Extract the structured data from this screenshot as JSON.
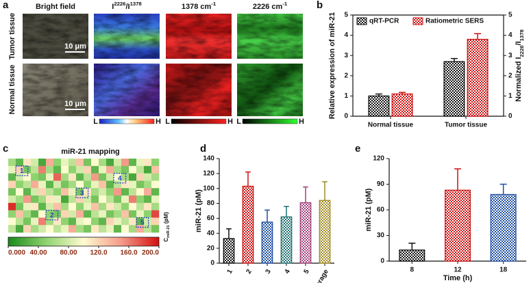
{
  "panel_labels": [
    "a",
    "b",
    "c",
    "d",
    "e"
  ],
  "panel_a": {
    "columns": [
      "Bright field",
      [
        "I",
        "2226",
        "/I",
        "1378"
      ],
      [
        "1378 cm",
        "-1"
      ],
      [
        "2226 cm",
        "-1"
      ]
    ],
    "rows": [
      "Tumor tissue",
      "Normal tissue"
    ],
    "scale_bar": "10 μm",
    "colorbar_low": "L",
    "colorbar_high": "H"
  },
  "chart_data": [
    {
      "type": "bar",
      "categories": [
        "Normal tissue",
        "Tumor tissue"
      ],
      "series": [
        {
          "name": "qRT-PCR",
          "color": "#111111",
          "values": [
            1.0,
            2.7
          ],
          "errors": [
            0.1,
            0.15
          ]
        },
        {
          "name": "Ratiometric SERS",
          "color": "#cc1111",
          "values": [
            1.1,
            3.8
          ],
          "errors": [
            0.08,
            0.28
          ],
          "axis": "y2"
        }
      ],
      "ylabel": "Relative expression of miR-21",
      "y2label": [
        "Normalized I",
        "2226",
        "/I",
        "1378"
      ],
      "ylim": [
        0,
        5
      ],
      "yticks": [
        0,
        1,
        2,
        3,
        4,
        5
      ],
      "y2lim": [
        0,
        5
      ],
      "y2ticks": [
        0,
        1,
        2,
        3,
        4,
        5
      ],
      "legend": "upper left"
    },
    {
      "type": "heatmap",
      "title": "miR-21 mapping",
      "values": [
        [
          60,
          30,
          110,
          80,
          20,
          140,
          50,
          90,
          70,
          130,
          40,
          100,
          60,
          20,
          80,
          150,
          30,
          90,
          110,
          50
        ],
        [
          90,
          120,
          40,
          70,
          160,
          60,
          30,
          100,
          50,
          80,
          120,
          30,
          90,
          140,
          60,
          40,
          100,
          70,
          20,
          130
        ],
        [
          30,
          80,
          100,
          50,
          40,
          90,
          170,
          60,
          110,
          30,
          70,
          150,
          40,
          80,
          100,
          60,
          20,
          120,
          80,
          60
        ],
        [
          120,
          50,
          70,
          140,
          90,
          30,
          80,
          40,
          60,
          100,
          50,
          90,
          130,
          30,
          70,
          110,
          90,
          40,
          60,
          100
        ],
        [
          40,
          100,
          30,
          80,
          120,
          70,
          50,
          130,
          90,
          40,
          110,
          60,
          80,
          50,
          150,
          30,
          70,
          100,
          140,
          30
        ],
        [
          80,
          60,
          150,
          40,
          60,
          110,
          90,
          20,
          70,
          120,
          80,
          40,
          100,
          70,
          40,
          90,
          160,
          50,
          30,
          90
        ],
        [
          190,
          40,
          90,
          110,
          30,
          80,
          130,
          60,
          100,
          50,
          90,
          130,
          60,
          110,
          80,
          50,
          100,
          70,
          110,
          60
        ],
        [
          50,
          130,
          60,
          30,
          100,
          50,
          40,
          120,
          80,
          140,
          30,
          70,
          90,
          40,
          60,
          130,
          40,
          90,
          50,
          180
        ],
        [
          100,
          70,
          40,
          90,
          160,
          60,
          110,
          50,
          30,
          90,
          100,
          50,
          30,
          120,
          90,
          70,
          110,
          30,
          80,
          120
        ],
        [
          70,
          20,
          120,
          60,
          80,
          100,
          70,
          90,
          140,
          60,
          40,
          110,
          70,
          90,
          30,
          100,
          60,
          140,
          70,
          40
        ]
      ],
      "zlim": [
        0,
        200
      ],
      "colorbar_ticks": [
        {
          "value": 0,
          "label": "0.000"
        },
        {
          "value": 40,
          "label": "40.00"
        },
        {
          "value": 80,
          "label": "80.00"
        },
        {
          "value": 120,
          "label": "120.0"
        },
        {
          "value": 160,
          "label": "160.0"
        },
        {
          "value": 200,
          "label": "200.0"
        }
      ],
      "colorbar_label": [
        "C",
        "miR-21",
        " (pM)"
      ],
      "regions": [
        "1",
        "2",
        "3",
        "4",
        "5"
      ]
    },
    {
      "type": "bar",
      "categories": [
        "1",
        "2",
        "3",
        "4",
        "5",
        "Average"
      ],
      "values": [
        33,
        103,
        55,
        62,
        81,
        84
      ],
      "errors": [
        13,
        19,
        16,
        14,
        21,
        25
      ],
      "colors": [
        "#111111",
        "#cc1111",
        "#1f4fa0",
        "#1f7070",
        "#a0407a",
        "#a08a20"
      ],
      "ylabel": "miR-21 (pM)",
      "ylim": [
        0,
        140
      ],
      "yticks": [
        0,
        20,
        40,
        60,
        80,
        100,
        120,
        140
      ]
    },
    {
      "type": "bar",
      "categories": [
        "8",
        "12",
        "18"
      ],
      "values": [
        13,
        83,
        78
      ],
      "errors": [
        8,
        25,
        12
      ],
      "colors": [
        "#111111",
        "#cc1111",
        "#1f4fa0"
      ],
      "ylabel": "miR-21 (pM)",
      "xlabel": "Time (h)",
      "ylim": [
        0,
        120
      ],
      "yticks": [
        0,
        30,
        60,
        90,
        120
      ]
    }
  ]
}
